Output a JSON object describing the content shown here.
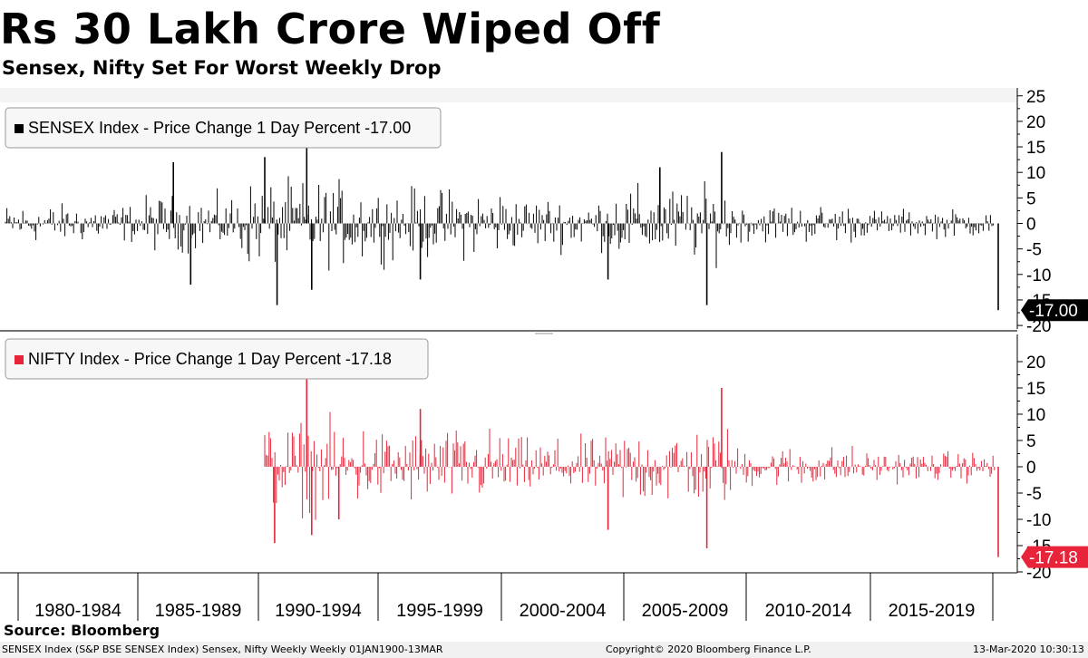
{
  "header": {
    "title": "Rs 30 Lakh Crore Wiped Off",
    "subtitle": "Sensex, Nifty Set For Worst Weekly Drop"
  },
  "footer": {
    "source": "Source: Bloomberg",
    "security_line": "SENSEX Index (S&P BSE SENSEX Index) Sensex, Nifty Weekly  Weekly 01JAN1900-13MAR",
    "copyright": "Copyright© 2020 Bloomberg Finance L.P.",
    "timestamp": "13-Mar-2020 10:30:13"
  },
  "chart_data": [
    {
      "type": "bar",
      "legend": "SENSEX Index - Price Change 1 Day Percent -17.00",
      "color": "#000000",
      "ylim": [
        -20,
        25
      ],
      "yticks": [
        25,
        20,
        15,
        10,
        5,
        0,
        -5,
        -10,
        -15,
        -20
      ],
      "last_value": -17.0,
      "last_value_label": "-17.00",
      "xlabels": [
        "1980-1984",
        "1985-1989",
        "1990-1994",
        "1995-1999",
        "2000-2004",
        "2005-2009",
        "2010-2014",
        "2015-2019"
      ],
      "x_range": [
        1980,
        2020.2
      ],
      "notable_points": [
        {
          "x": 1986.8,
          "y": 12
        },
        {
          "x": 1987.5,
          "y": -12
        },
        {
          "x": 1990.5,
          "y": 13
        },
        {
          "x": 1991.0,
          "y": -16
        },
        {
          "x": 1992.2,
          "y": 19
        },
        {
          "x": 1992.4,
          "y": -13
        },
        {
          "x": 1996.8,
          "y": -11
        },
        {
          "x": 2004.4,
          "y": -11
        },
        {
          "x": 2006.5,
          "y": 11
        },
        {
          "x": 2008.4,
          "y": -16
        },
        {
          "x": 2009.0,
          "y": 14
        },
        {
          "x": 2020.2,
          "y": -17.0
        }
      ]
    },
    {
      "type": "bar",
      "legend": "NIFTY Index - Price Change 1 Day Percent -17.18",
      "color": "#e8243a",
      "ylim": [
        -20,
        20
      ],
      "yticks": [
        20,
        15,
        10,
        5,
        0,
        -5,
        -10,
        -15,
        -20
      ],
      "last_value": -17.18,
      "last_value_label": "-17.18",
      "start_x": 1990.5,
      "x_range": [
        1980,
        2020.2
      ],
      "notable_points": [
        {
          "x": 1990.9,
          "y": -14.5
        },
        {
          "x": 1992.2,
          "y": 17
        },
        {
          "x": 1992.4,
          "y": -13
        },
        {
          "x": 1993.5,
          "y": -10
        },
        {
          "x": 1996.8,
          "y": 11
        },
        {
          "x": 2004.4,
          "y": -12
        },
        {
          "x": 2008.4,
          "y": -15.5
        },
        {
          "x": 2009.0,
          "y": 15
        },
        {
          "x": 2020.2,
          "y": -17.18
        }
      ]
    }
  ]
}
